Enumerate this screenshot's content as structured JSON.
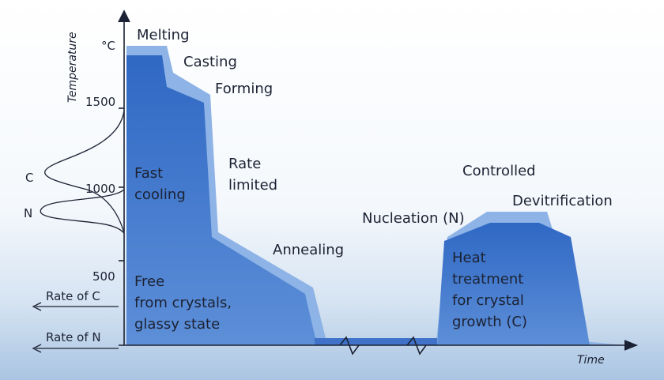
{
  "axis": {
    "y_label": "Temperature",
    "unit": "°C",
    "ticks": [
      1500,
      1000,
      500
    ],
    "x_label": "Time"
  },
  "stages": {
    "melting": "Melting",
    "casting": "Casting",
    "forming": "Forming",
    "fast_cooling": [
      "Fast",
      "cooling"
    ],
    "rate_limited": [
      "Rate",
      "limited"
    ],
    "annealing": "Annealing",
    "nucleation": "Nucleation (N)",
    "controlled": "Controlled",
    "devitrification": "Devitrification",
    "heat_treatment": [
      "Heat",
      "treatment",
      "for crystal",
      "growth (C)"
    ],
    "glassy": [
      "Free",
      "from crystals,",
      "glassy state"
    ]
  },
  "curves": {
    "c": "C",
    "n": "N",
    "rate_c": "Rate of C",
    "rate_n": "Rate of N"
  }
}
